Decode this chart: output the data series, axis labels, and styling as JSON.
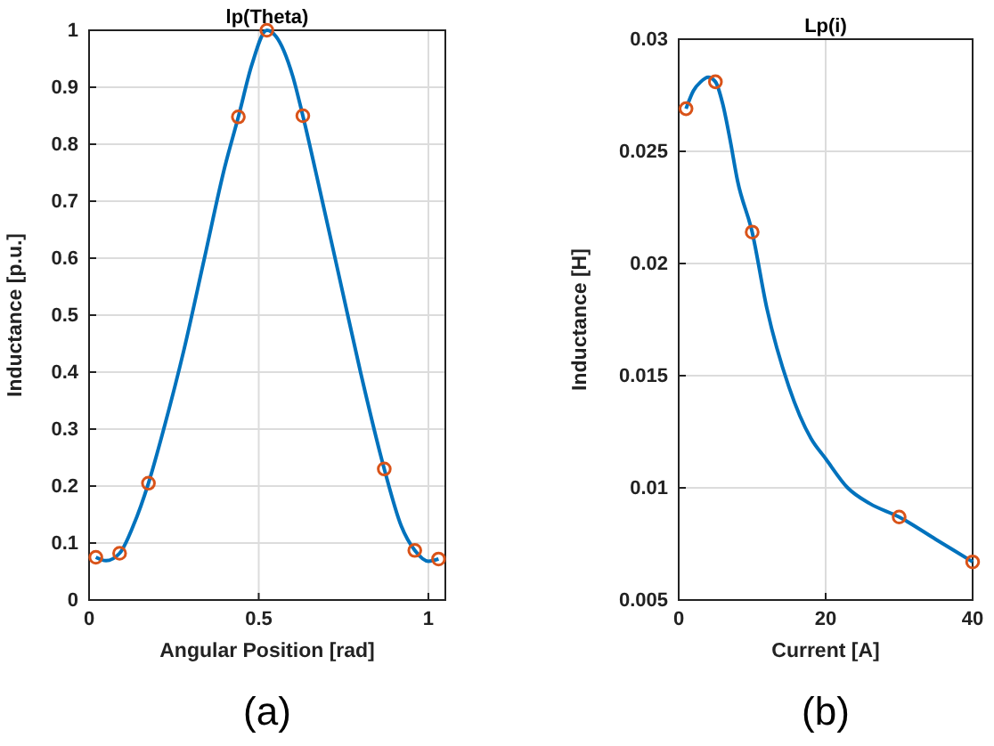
{
  "chart_data": [
    {
      "type": "line",
      "title": "lp(Theta)",
      "xlabel": "Angular Position [rad]",
      "ylabel": "Inductance [p.u.]",
      "xlim": [
        0,
        1.05
      ],
      "xticks": [
        0,
        0.5,
        1
      ],
      "ylim": [
        0,
        1
      ],
      "yticks": [
        0,
        0.1,
        0.2,
        0.3,
        0.4,
        0.5,
        0.6,
        0.7,
        0.8,
        0.9,
        1
      ],
      "grid": true,
      "annotations": [
        "(a)"
      ],
      "series": [
        {
          "color": "#0072bd",
          "marker": "none",
          "x": [
            0.02,
            0.05,
            0.09,
            0.13,
            0.175,
            0.22,
            0.28,
            0.34,
            0.4,
            0.44,
            0.48,
            0.524,
            0.55,
            0.6,
            0.63,
            0.68,
            0.74,
            0.8,
            0.87,
            0.92,
            0.96,
            1.0,
            1.03
          ],
          "values": [
            0.075,
            0.069,
            0.082,
            0.13,
            0.205,
            0.3,
            0.44,
            0.6,
            0.76,
            0.848,
            0.94,
            1.0,
            0.99,
            0.92,
            0.85,
            0.72,
            0.56,
            0.4,
            0.23,
            0.13,
            0.087,
            0.068,
            0.072
          ]
        },
        {
          "type": "scatter",
          "color": "#d95319",
          "marker": "circle",
          "x": [
            0.02,
            0.09,
            0.175,
            0.44,
            0.524,
            0.63,
            0.87,
            0.96,
            1.03
          ],
          "values": [
            0.075,
            0.082,
            0.205,
            0.848,
            1.0,
            0.85,
            0.23,
            0.087,
            0.072
          ]
        }
      ]
    },
    {
      "type": "line",
      "title": "Lp(i)",
      "xlabel": "Current [A]",
      "ylabel": "Inductance [H]",
      "xlim": [
        0,
        40
      ],
      "xticks": [
        0,
        20,
        40
      ],
      "ylim": [
        0.005,
        0.03
      ],
      "yticks": [
        0.005,
        0.01,
        0.015,
        0.02,
        0.025,
        0.03
      ],
      "grid": true,
      "annotations": [
        "(b)"
      ],
      "series": [
        {
          "color": "#0072bd",
          "marker": "none",
          "x": [
            1,
            2,
            3,
            4,
            5,
            6,
            7,
            8,
            10,
            12,
            15,
            18,
            20,
            23,
            26,
            30,
            35,
            40
          ],
          "values": [
            0.0269,
            0.0277,
            0.0281,
            0.0283,
            0.0281,
            0.0271,
            0.0255,
            0.0237,
            0.0214,
            0.018,
            0.0145,
            0.0122,
            0.0113,
            0.01,
            0.0093,
            0.0087,
            0.0077,
            0.0067
          ]
        },
        {
          "type": "scatter",
          "color": "#d95319",
          "marker": "circle",
          "x": [
            1,
            5,
            10,
            30,
            40
          ],
          "values": [
            0.0269,
            0.0281,
            0.0214,
            0.0087,
            0.0067
          ]
        }
      ]
    }
  ]
}
